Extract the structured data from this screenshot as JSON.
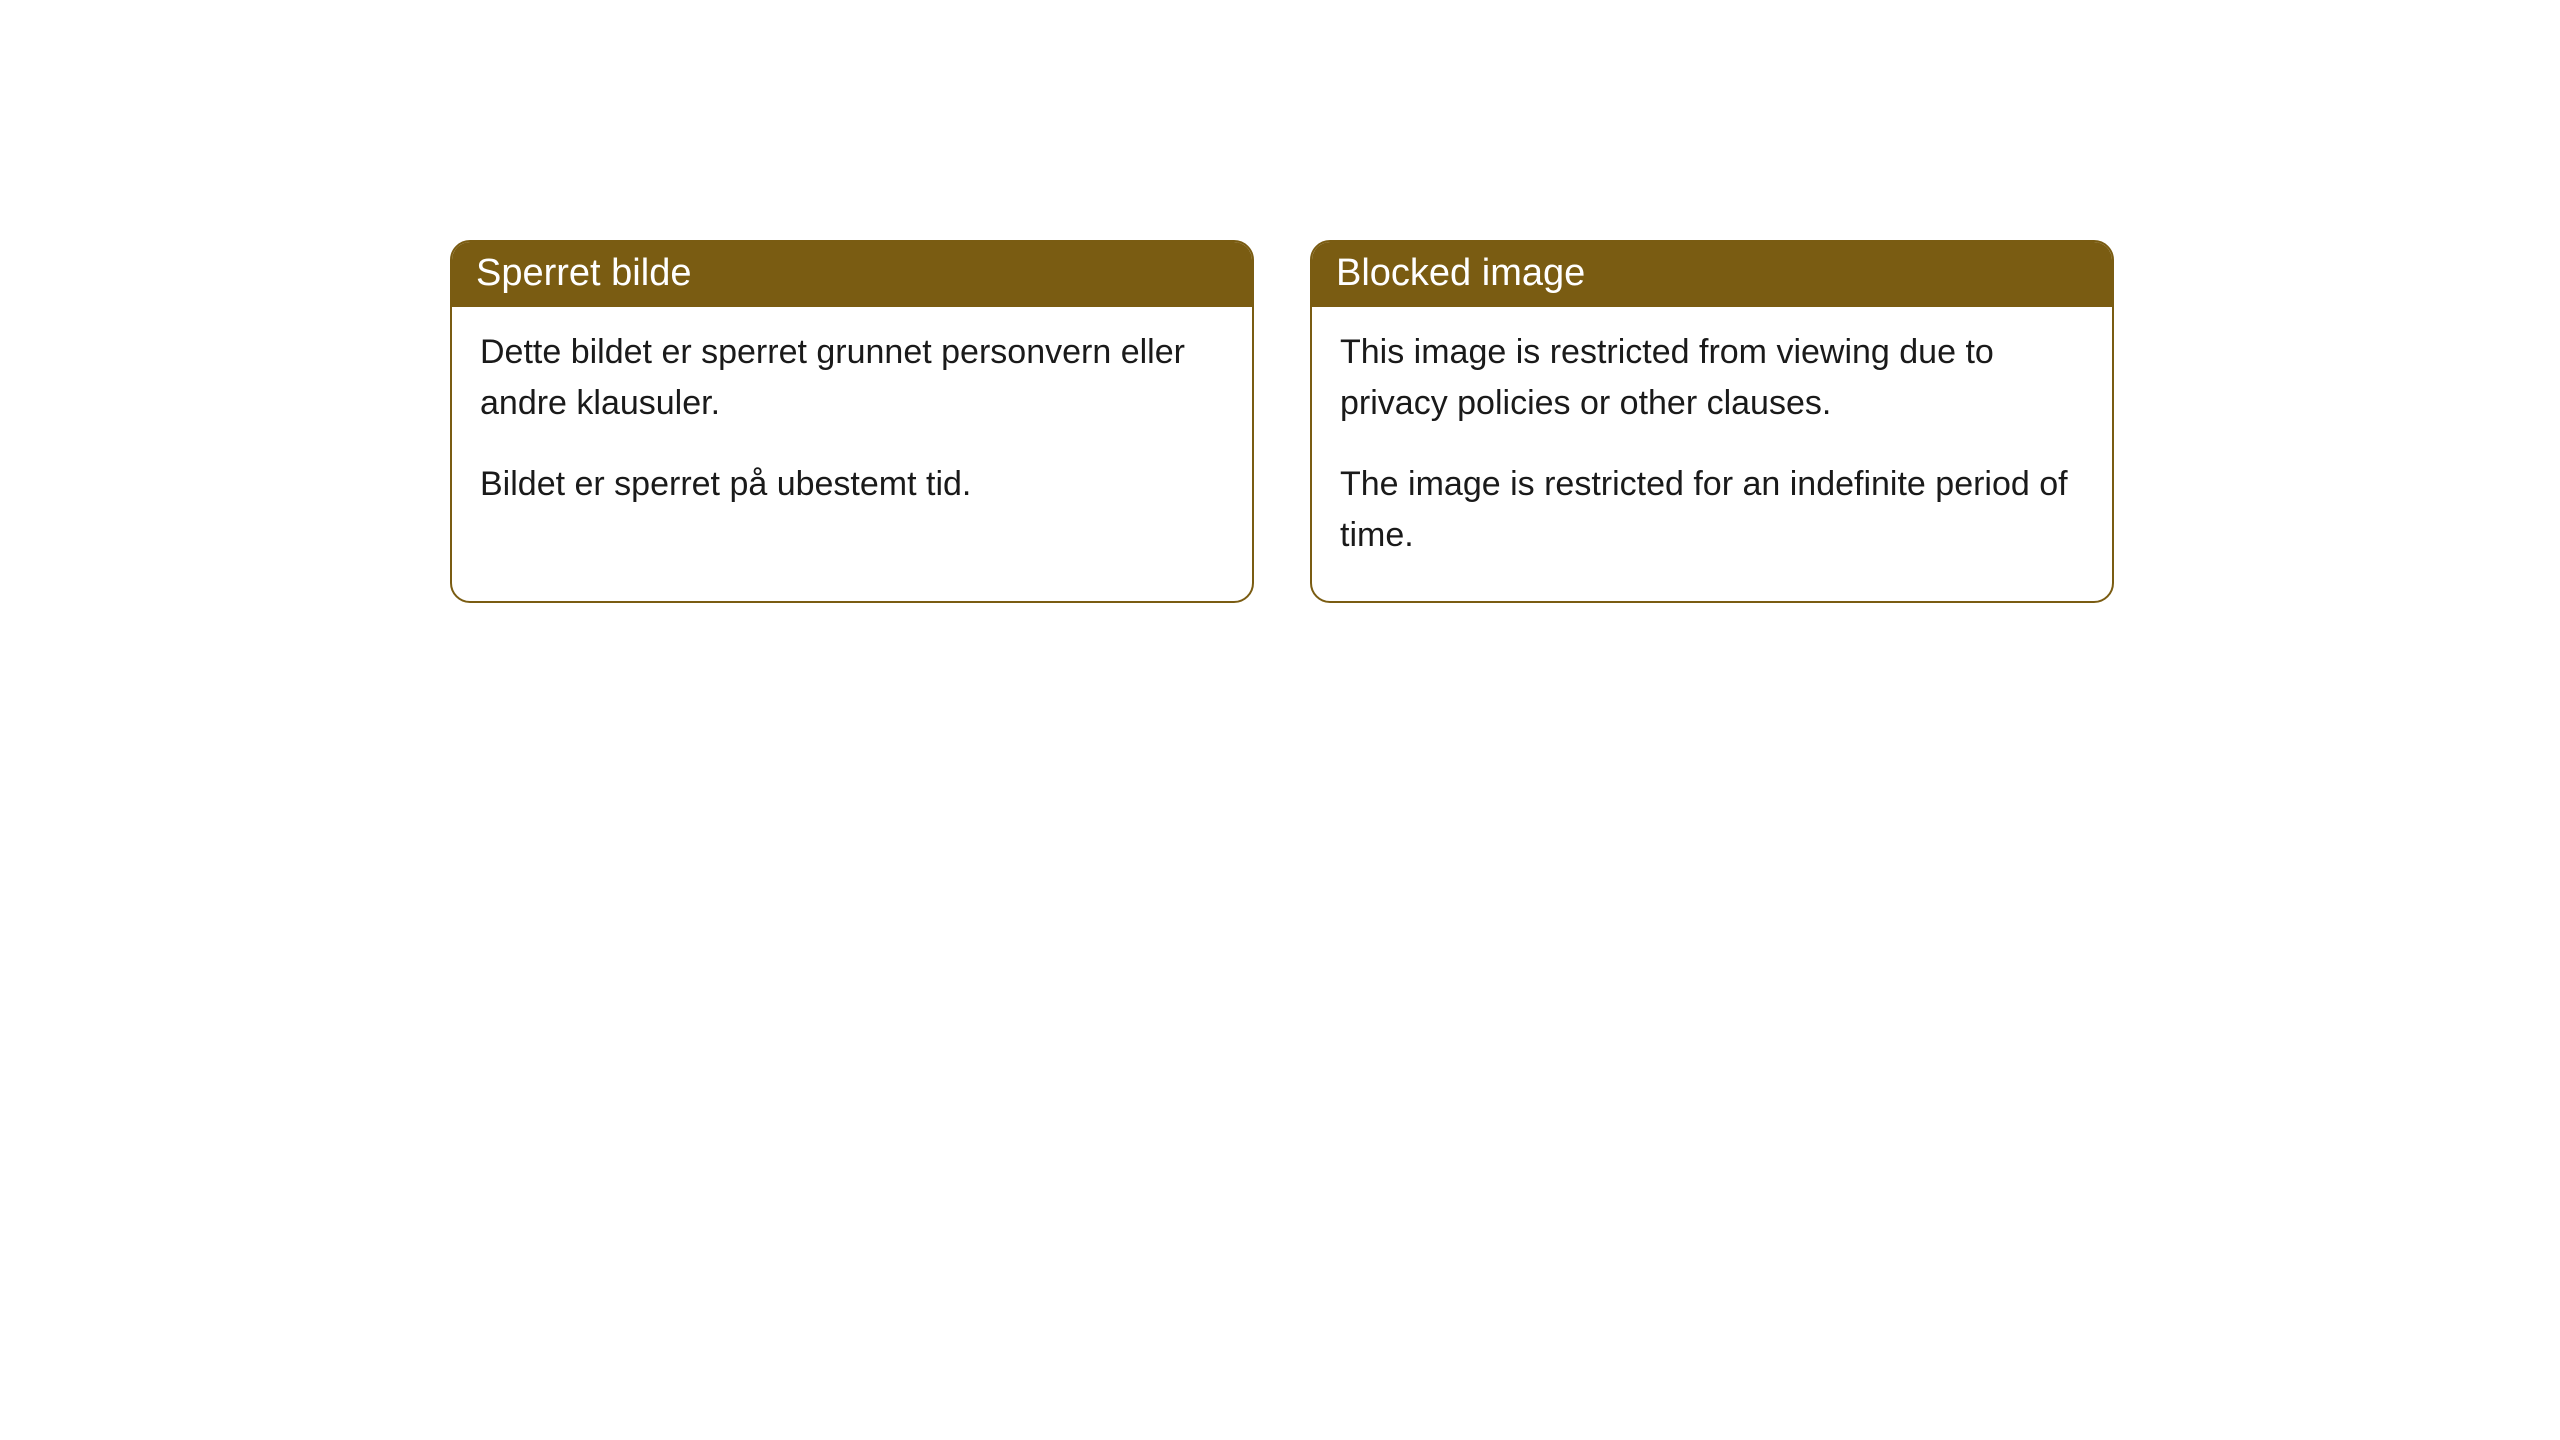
{
  "cards": [
    {
      "title": "Sperret bilde",
      "paragraph1": "Dette bildet er sperret grunnet personvern eller andre klausuler.",
      "paragraph2": "Bildet er sperret på ubestemt tid."
    },
    {
      "title": "Blocked image",
      "paragraph1": "This image is restricted from viewing due to privacy policies or other clauses.",
      "paragraph2": "The image is restricted for an indefinite period of time."
    }
  ],
  "styling": {
    "header_background_color": "#7a5c12",
    "header_text_color": "#ffffff",
    "border_color": "#7a5c12",
    "body_background_color": "#ffffff",
    "body_text_color": "#1a1a1a",
    "border_radius": 20,
    "header_font_size": 38,
    "body_font_size": 34
  }
}
